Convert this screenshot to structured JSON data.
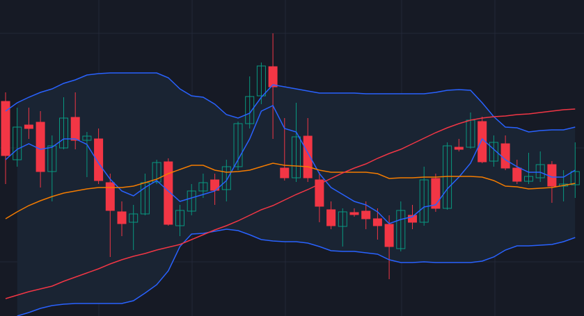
{
  "chart_data": {
    "type": "candlestick",
    "ylim": [
      0,
      455
    ],
    "up_color": "#089981",
    "down_color": "#f23645",
    "band_fill": "#1a2433",
    "open": [
      309,
      225,
      275,
      279,
      208,
      242,
      286,
      253,
      255,
      192,
      150,
      135,
      147,
      193,
      222,
      130,
      151,
      180,
      196,
      182,
      215,
      277,
      317,
      359,
      213,
      199,
      259,
      196,
      153,
      129,
      149,
      151,
      140,
      132,
      97,
      145,
      135,
      198,
      155,
      243,
      243,
      280,
      223,
      248,
      213,
      194,
      199,
      218,
      187,
      189
    ],
    "high": [
      322,
      300,
      300,
      295,
      260,
      315,
      322,
      265,
      270,
      205,
      165,
      160,
      205,
      225,
      227,
      160,
      190,
      205,
      205,
      225,
      280,
      345,
      365,
      407,
      285,
      307,
      285,
      207,
      165,
      155,
      155,
      165,
      155,
      145,
      165,
      160,
      215,
      205,
      250,
      255,
      293,
      287,
      260,
      260,
      225,
      235,
      237,
      223,
      210,
      250
    ],
    "low": [
      190,
      215,
      255,
      185,
      165,
      240,
      240,
      200,
      190,
      85,
      115,
      95,
      145,
      190,
      130,
      115,
      145,
      170,
      160,
      165,
      210,
      270,
      305,
      255,
      195,
      193,
      193,
      135,
      125,
      100,
      143,
      125,
      110,
      53,
      93,
      125,
      130,
      150,
      153,
      237,
      241,
      220,
      215,
      210,
      190,
      190,
      193,
      163,
      165,
      170
    ],
    "close": [
      231,
      272,
      270,
      208,
      245,
      285,
      253,
      259,
      195,
      152,
      133,
      147,
      192,
      221,
      132,
      152,
      180,
      192,
      181,
      215,
      277,
      316,
      360,
      330,
      199,
      258,
      199,
      158,
      130,
      150,
      146,
      140,
      130,
      100,
      152,
      135,
      196,
      155,
      245,
      240,
      282,
      222,
      250,
      213,
      194,
      201,
      218,
      187,
      190,
      208
    ],
    "series": [
      {
        "color": "#2962ff",
        "values": [
          295,
          307,
          315,
          322,
          327,
          335,
          340,
          347,
          349,
          350,
          350,
          350,
          350,
          350,
          343,
          327,
          317,
          315,
          305,
          290,
          285,
          292,
          315,
          333,
          330,
          327,
          324,
          321,
          321,
          321,
          321,
          320,
          320,
          320,
          320,
          320,
          320,
          322,
          325,
          326,
          325,
          307,
          287,
          272,
          271,
          265,
          267,
          268,
          268,
          272
        ]
      },
      {
        "color": "#2962ff",
        "values": [
          225,
          240,
          248,
          240,
          243,
          255,
          255,
          247,
          220,
          197,
          180,
          173,
          185,
          195,
          180,
          165,
          170,
          175,
          180,
          195,
          225,
          255,
          295,
          303,
          270,
          265,
          235,
          205,
          185,
          175,
          165,
          160,
          150,
          133,
          139,
          143,
          157,
          160,
          183,
          200,
          220,
          255,
          240,
          225,
          215,
          207,
          207,
          200,
          200,
          210
        ]
      },
      {
        "color": "#2962ff",
        "values": [
          null,
          0,
          5,
          11,
          15,
          17,
          18,
          18,
          18,
          18,
          18,
          22,
          33,
          45,
          65,
          100,
          118,
          119,
          122,
          125,
          123,
          117,
          110,
          108,
          107,
          107,
          105,
          100,
          94,
          93,
          93,
          91,
          89,
          81,
          77,
          77,
          78,
          77,
          77,
          77,
          77,
          79,
          85,
          95,
          101,
          101,
          102,
          103,
          107,
          113
        ]
      },
      {
        "color": "#f57c00",
        "values": [
          140,
          150,
          159,
          166,
          172,
          177,
          180,
          183,
          185,
          185,
          185,
          187,
          192,
          197,
          205,
          211,
          217,
          217,
          210,
          207,
          208,
          210,
          215,
          220,
          217,
          216,
          215,
          210,
          207,
          207,
          207,
          207,
          205,
          198,
          199,
          199,
          200,
          200,
          201,
          201,
          201,
          200,
          195,
          187,
          186,
          183,
          184,
          185,
          188,
          191
        ]
      },
      {
        "color": "#f23645",
        "values": [
          25,
          30,
          35,
          39,
          43,
          50,
          56,
          62,
          68,
          75,
          81,
          86,
          90,
          95,
          99,
          103,
          110,
          117,
          124,
          130,
          137,
          145,
          153,
          159,
          167,
          175,
          182,
          190,
          198,
          206,
          213,
          219,
          227,
          234,
          240,
          248,
          256,
          264,
          271,
          277,
          282,
          285,
          287,
          288,
          290,
          291,
          293,
          295,
          297,
          298
        ]
      }
    ]
  }
}
